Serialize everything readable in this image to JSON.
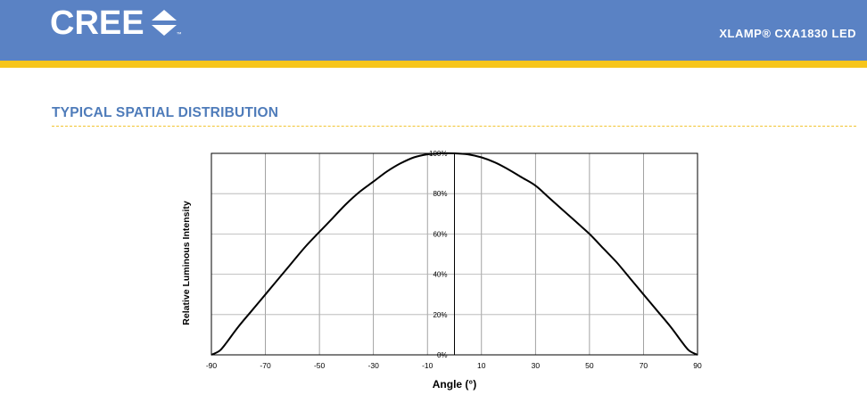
{
  "header": {
    "brand": "CREE",
    "brand_mark": "cree-arrows-logo",
    "trademark": "™",
    "product": "XLAMP® CXA1830 LED",
    "colors": {
      "bar": "#5a82c4",
      "stripe": "#f6c51c"
    }
  },
  "section": {
    "title": "TYPICAL SPATIAL DISTRIBUTION",
    "color": "#4f7cba"
  },
  "chart_data": {
    "type": "line",
    "title": "",
    "xlabel": "Angle (°)",
    "ylabel": "Relative Luminous Intensity",
    "xlim": [
      -90,
      90
    ],
    "ylim": [
      0,
      100
    ],
    "x_ticks": [
      -90,
      -70,
      -50,
      -30,
      -10,
      10,
      30,
      50,
      70,
      90
    ],
    "y_ticks": [
      0,
      20,
      40,
      60,
      80,
      100
    ],
    "y_tick_labels": [
      "0%",
      "20%",
      "40%",
      "60%",
      "80%",
      "100%"
    ],
    "grid": true,
    "series": [
      {
        "x": [
          -90,
          -87,
          -85,
          -80,
          -75,
          -70,
          -65,
          -60,
          -55,
          -50,
          -45,
          -40,
          -35,
          -30,
          -25,
          -20,
          -15,
          -10,
          -5,
          0,
          5,
          10,
          15,
          20,
          25,
          30,
          35,
          40,
          45,
          50,
          55,
          60,
          65,
          70,
          75,
          80,
          85,
          87,
          90
        ],
        "y": [
          0,
          2,
          5,
          14,
          22,
          30,
          38,
          46,
          54,
          61,
          68,
          75,
          81,
          86,
          91,
          95,
          98,
          99.5,
          100,
          100,
          99.5,
          98,
          95.5,
          92,
          88,
          84,
          78,
          72,
          66,
          60,
          53,
          46,
          38,
          30,
          22,
          14,
          5,
          2,
          0
        ]
      }
    ]
  }
}
